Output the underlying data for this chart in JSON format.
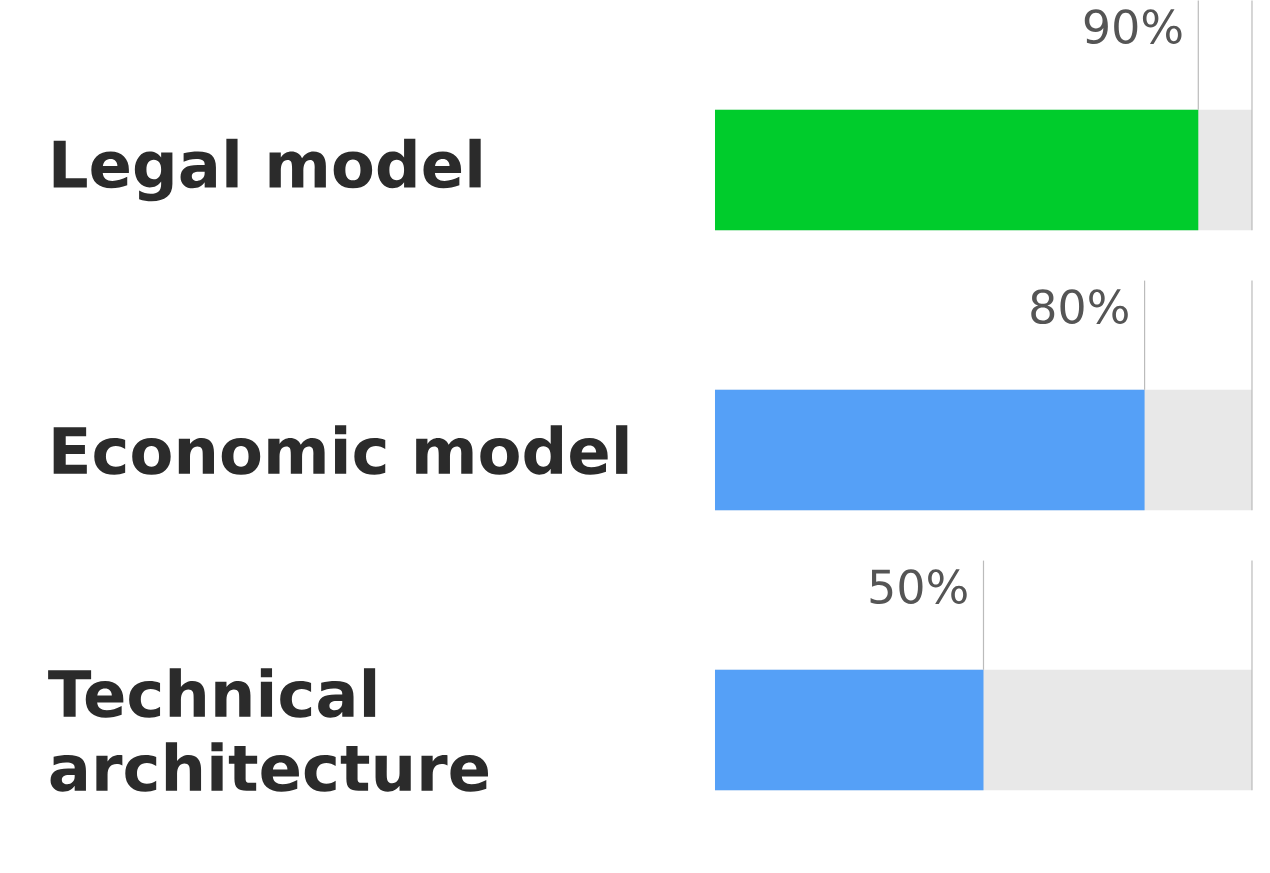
{
  "chart_data": {
    "type": "bar",
    "orientation": "horizontal",
    "categories": [
      "Legal model",
      "Economic model",
      "Technical architecture"
    ],
    "values": [
      90,
      80,
      50
    ],
    "colors": [
      "#00cc2c",
      "#55a0f7",
      "#55a0f7"
    ],
    "value_labels": [
      "90%",
      "80%",
      "50%"
    ],
    "xlim": [
      0,
      100
    ],
    "tick_labels": "y"
  }
}
